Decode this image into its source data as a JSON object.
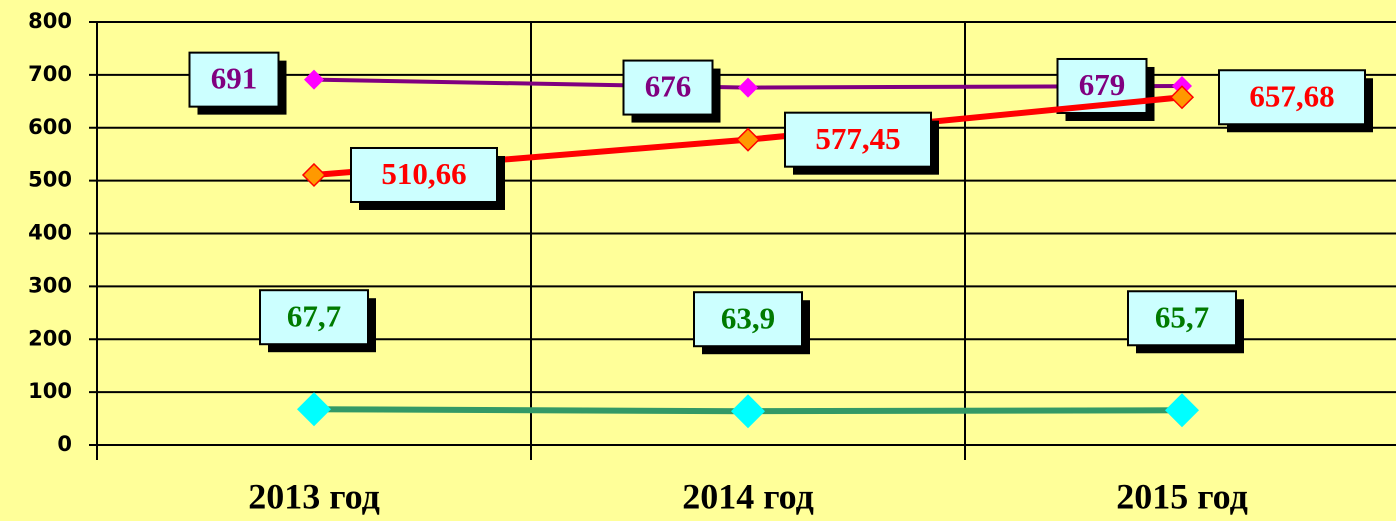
{
  "chart_data": {
    "type": "line",
    "categories": [
      "2013 год",
      "2014 год",
      "2015 год"
    ],
    "series": [
      {
        "color": "#800080",
        "marker_color": "#ff00ff",
        "label_color": "#800080",
        "values": [
          691,
          676,
          679
        ]
      },
      {
        "color": "#ff0000",
        "marker_color": "#ff9900",
        "label_color": "#ff0000",
        "values": [
          510.66,
          577.45,
          657.68
        ],
        "value_labels": [
          "510,66",
          "577,45",
          "657,68"
        ]
      },
      {
        "color": "#339966",
        "marker_color": "#00ffff",
        "label_color": "#007a00",
        "values": [
          67.7,
          63.9,
          65.7
        ],
        "value_labels": [
          "67,7",
          "63,9",
          "65,7"
        ]
      }
    ],
    "ylim": [
      0,
      800
    ],
    "yticks": [
      0,
      100,
      200,
      300,
      400,
      500,
      600,
      700,
      800
    ],
    "grid": true
  }
}
